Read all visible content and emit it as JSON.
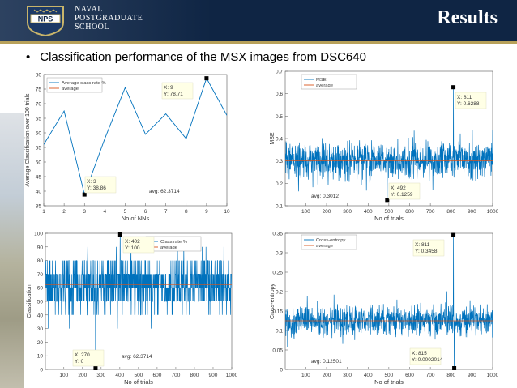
{
  "header": {
    "logo_badge": "NPS",
    "logo_lines": [
      "NAVAL",
      "POSTGRADUATE",
      "SCHOOL"
    ],
    "title": "Results",
    "colors": {
      "navy": "#0f2544",
      "gold": "#b8a15a"
    }
  },
  "bullet": {
    "marker": "•",
    "text": "Classification performance of the MSX images from DSC640"
  },
  "chart_data": [
    {
      "id": "c1",
      "type": "line",
      "title": "",
      "xlabel": "No of NNs",
      "ylabel": "Average Classification over 100 trials",
      "xlim": [
        1,
        10
      ],
      "ylim": [
        35,
        80
      ],
      "xticks": [
        1,
        2,
        3,
        4,
        5,
        6,
        7,
        8,
        9,
        10
      ],
      "yticks": [
        35,
        40,
        45,
        50,
        55,
        60,
        65,
        70,
        75,
        80
      ],
      "series": [
        {
          "name": "Average class rate %",
          "color": "#0072bd",
          "x": [
            1,
            2,
            3,
            4,
            5,
            6,
            7,
            8,
            9,
            10
          ],
          "values": [
            56,
            67.5,
            38.86,
            58,
            75.5,
            59.5,
            66.5,
            58,
            78.71,
            66
          ]
        },
        {
          "name": "average",
          "color": "#d95319",
          "hline": 62.3714
        }
      ],
      "legend": "top-left",
      "annotations": [
        {
          "lines": [
            "X: 9",
            "Y: 78.71"
          ],
          "x": 9,
          "y": 78.71
        },
        {
          "lines": [
            "X: 3",
            "Y: 38.86"
          ],
          "x": 3,
          "y": 38.86
        },
        {
          "lines": [
            "avg: 62.3714"
          ]
        }
      ]
    },
    {
      "id": "c2",
      "type": "line",
      "title": "",
      "xlabel": "No of trials",
      "ylabel": "MSE",
      "xlim": [
        1,
        1000
      ],
      "ylim": [
        0.1,
        0.7
      ],
      "xticks": [
        100,
        200,
        300,
        400,
        500,
        600,
        700,
        800,
        900,
        1000
      ],
      "yticks": [
        0.1,
        0.2,
        0.3,
        0.4,
        0.5,
        0.6,
        0.7
      ],
      "series": [
        {
          "name": "MSE",
          "color": "#0072bd",
          "n": 1000,
          "mean": 0.3012,
          "spread": 0.07,
          "min": 0.1259,
          "max": 0.6288,
          "min_at": 492,
          "max_at": 811
        },
        {
          "name": "average",
          "color": "#d95319",
          "hline": 0.3012
        }
      ],
      "legend": "top-left",
      "annotations": [
        {
          "lines": [
            "X: 811",
            "Y: 0.6288"
          ],
          "x": 811,
          "y": 0.6288
        },
        {
          "lines": [
            "X: 492",
            "Y: 0.1259"
          ],
          "x": 492,
          "y": 0.1259
        },
        {
          "lines": [
            "avg: 0.3012"
          ]
        }
      ]
    },
    {
      "id": "c3",
      "type": "line",
      "title": "",
      "xlabel": "No of trials",
      "ylabel": "Classification",
      "xlim": [
        1,
        1000
      ],
      "ylim": [
        0,
        100
      ],
      "xticks": [
        100,
        200,
        300,
        400,
        500,
        600,
        700,
        800,
        900,
        1000
      ],
      "yticks": [
        0,
        10,
        20,
        30,
        40,
        50,
        60,
        70,
        80,
        90,
        100
      ],
      "series": [
        {
          "name": "Class rate %",
          "color": "#0072bd",
          "n": 1000,
          "mean": 62.3714,
          "spread": 18,
          "min": 0,
          "max": 100,
          "min_at": 270,
          "max_at": 402
        },
        {
          "name": "average",
          "color": "#d95319",
          "hline": 62.3714
        }
      ],
      "legend": "top-right",
      "annotations": [
        {
          "lines": [
            "X: 402",
            "Y: 100"
          ],
          "x": 402,
          "y": 100
        },
        {
          "lines": [
            "X: 270",
            "Y: 0"
          ],
          "x": 270,
          "y": 0
        },
        {
          "lines": [
            "avg: 62.3714"
          ]
        }
      ]
    },
    {
      "id": "c4",
      "type": "line",
      "title": "",
      "xlabel": "No of trials",
      "ylabel": "Cross-entropy",
      "xlim": [
        1,
        1000
      ],
      "ylim": [
        0,
        0.35
      ],
      "xticks": [
        100,
        200,
        300,
        400,
        500,
        600,
        700,
        800,
        900,
        1000
      ],
      "yticks": [
        0,
        0.05,
        0.1,
        0.15,
        0.2,
        0.25,
        0.3,
        0.35
      ],
      "series": [
        {
          "name": "Cross-entropy",
          "color": "#0072bd",
          "n": 1000,
          "mean": 0.12501,
          "spread": 0.035,
          "min": 0.0002014,
          "max": 0.3458,
          "min_at": 815,
          "max_at": 811
        },
        {
          "name": "average",
          "color": "#d95319",
          "hline": 0.12501
        }
      ],
      "legend": "top-left",
      "annotations": [
        {
          "lines": [
            "X: 811",
            "Y: 0.3458"
          ],
          "x": 811,
          "y": 0.3458
        },
        {
          "lines": [
            "X: 815",
            "Y: 0.0002014"
          ],
          "x": 815,
          "y": 0.0002014
        },
        {
          "lines": [
            "avg: 0.12501"
          ]
        }
      ]
    }
  ]
}
